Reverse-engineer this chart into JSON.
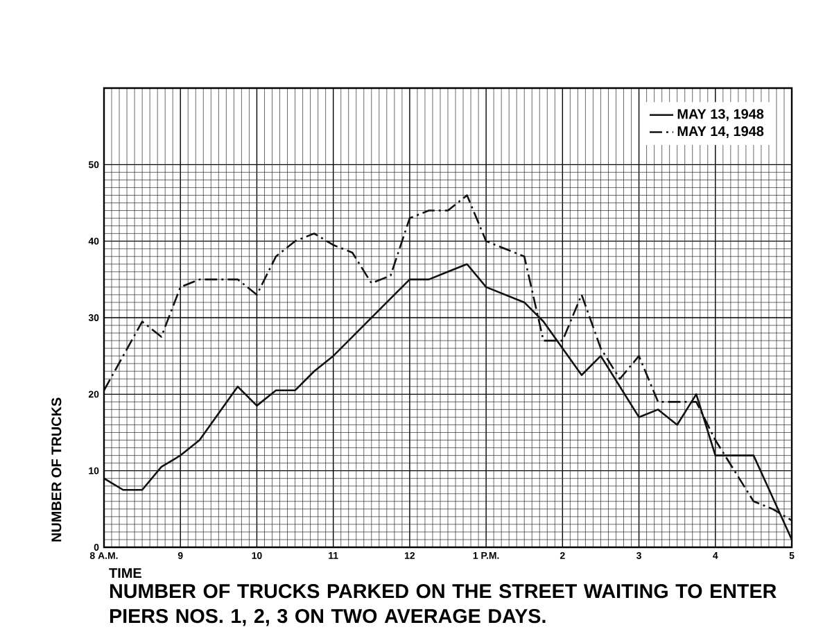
{
  "chart_data": {
    "type": "line",
    "title": "NUMBER OF TRUCKS PARKED ON THE STREET WAITING TO ENTER PIERS NOS. 1, 2, 3 ON TWO AVERAGE DAYS.",
    "xlabel": "TIME",
    "ylabel": "NUMBER OF TRUCKS",
    "categories": [
      "8 A.M.",
      null,
      null,
      null,
      "9",
      null,
      null,
      null,
      "10",
      null,
      null,
      null,
      "11",
      null,
      null,
      null,
      "12",
      null,
      null,
      null,
      "1 P.M.",
      null,
      null,
      null,
      "2",
      null,
      null,
      null,
      "3",
      null,
      null,
      null,
      "4",
      null,
      null,
      null,
      "5"
    ],
    "ylim": [
      0,
      60
    ],
    "yticks": [
      0,
      10,
      20,
      30,
      40,
      50
    ],
    "grid": true,
    "legend": "top right",
    "marker": "none",
    "series": [
      {
        "name": "MAY 13, 1948",
        "color": "#111111",
        "line_style": "solid",
        "values": [
          9,
          7.5,
          7.5,
          10.5,
          12,
          14,
          17.5,
          21,
          18.5,
          20.5,
          20.5,
          23,
          25,
          27.5,
          30,
          32.5,
          35,
          35,
          36,
          37,
          34,
          33,
          32,
          29.5,
          26,
          22.5,
          25,
          21,
          17,
          18,
          16,
          20,
          12,
          12,
          12,
          6.5,
          1
        ]
      },
      {
        "name": "MAY 14, 1948",
        "color": "#111111",
        "line_style": "dashed",
        "values": [
          20.5,
          25,
          29.5,
          27.5,
          34,
          35,
          35,
          35,
          33,
          38,
          40,
          41,
          39.5,
          38.5,
          34.5,
          35.5,
          43,
          44,
          44,
          46,
          40,
          39,
          38,
          27,
          27,
          33,
          26,
          22,
          25,
          19,
          19,
          19,
          14,
          10,
          6,
          5,
          3.5
        ]
      }
    ]
  }
}
